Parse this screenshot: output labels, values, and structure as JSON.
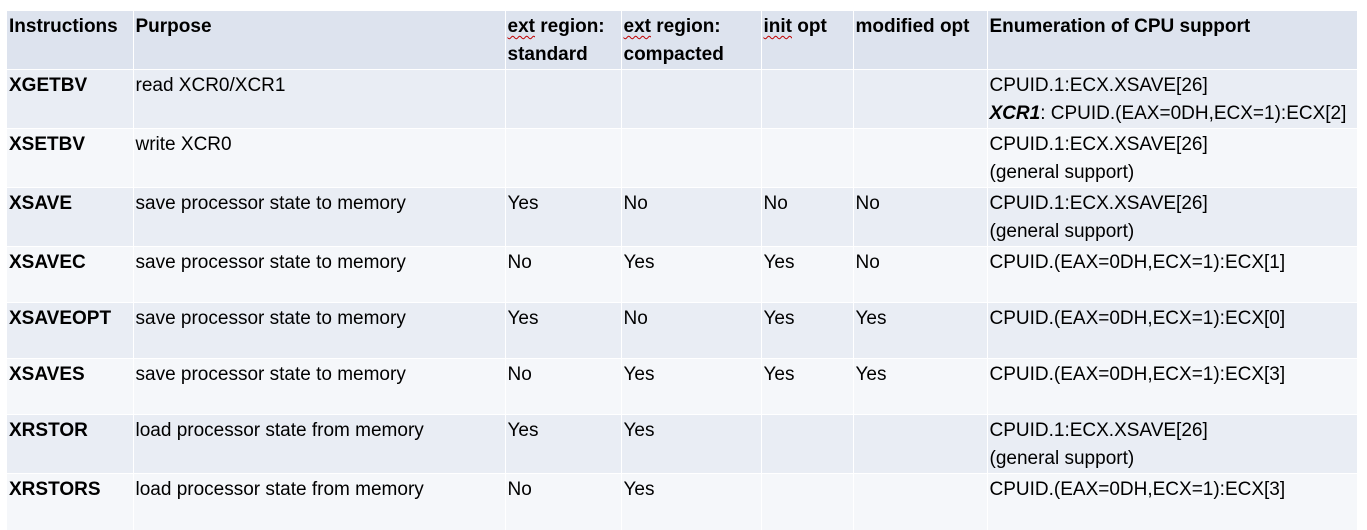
{
  "headers": {
    "instructions": "Instructions",
    "purpose": "Purpose",
    "ext_standard_a": "ext",
    "ext_standard_b": " region:",
    "ext_standard_c": "standard",
    "ext_compacted_a": "ext",
    "ext_compacted_b": " region:",
    "ext_compacted_c": "compacted",
    "init_opt_a": "init",
    "init_opt_b": " opt",
    "modified_opt": "modified opt",
    "enumeration": "Enumeration of CPU support"
  },
  "rows": [
    {
      "instr": "XGETBV",
      "purpose": "read XCR0/XCR1",
      "ext_standard": "",
      "ext_compacted": "",
      "init_opt": "",
      "modified_opt": "",
      "enum_line1": "CPUID.1:ECX.XSAVE[26]",
      "enum_line2_prefix": "XCR1",
      "enum_line2": ": CPUID.(EAX=0DH,ECX=1):ECX[2]"
    },
    {
      "instr": "XSETBV",
      "purpose": "write XCR0",
      "ext_standard": "",
      "ext_compacted": "",
      "init_opt": "",
      "modified_opt": "",
      "enum_line1": "CPUID.1:ECX.XSAVE[26]",
      "enum_line2": "(general support)"
    },
    {
      "instr": "XSAVE",
      "purpose": "save processor state to memory",
      "ext_standard": "Yes",
      "ext_compacted": "No",
      "init_opt": "No",
      "modified_opt": "No",
      "enum_line1": "CPUID.1:ECX.XSAVE[26]",
      "enum_line2": "(general support)"
    },
    {
      "instr": "XSAVEC",
      "purpose": "save processor state to memory",
      "ext_standard": "No",
      "ext_compacted": "Yes",
      "init_opt": "Yes",
      "modified_opt": "No",
      "enum_line1": "CPUID.(EAX=0DH,ECX=1):ECX[1]",
      "enum_line2": ""
    },
    {
      "instr": "XSAVEOPT",
      "purpose": "save processor state to memory",
      "ext_standard": "Yes",
      "ext_compacted": "No",
      "init_opt": "Yes",
      "modified_opt": "Yes",
      "enum_line1": "CPUID.(EAX=0DH,ECX=1):ECX[0]",
      "enum_line2": ""
    },
    {
      "instr": "XSAVES",
      "purpose": "save processor state to memory",
      "ext_standard": "No",
      "ext_compacted": "Yes",
      "init_opt": "Yes",
      "modified_opt": "Yes",
      "enum_line1": "CPUID.(EAX=0DH,ECX=1):ECX[3]",
      "enum_line2": ""
    },
    {
      "instr": "XRSTOR",
      "purpose": "load processor state from memory",
      "ext_standard": "Yes",
      "ext_compacted": "Yes",
      "init_opt": "",
      "modified_opt": "",
      "enum_line1": "CPUID.1:ECX.XSAVE[26]",
      "enum_line2": "(general support)"
    },
    {
      "instr": "XRSTORS",
      "purpose": "load processor state from memory",
      "ext_standard": "No",
      "ext_compacted": "Yes",
      "init_opt": "",
      "modified_opt": "",
      "enum_line1": "CPUID.(EAX=0DH,ECX=1):ECX[3]",
      "enum_line2": ""
    }
  ]
}
